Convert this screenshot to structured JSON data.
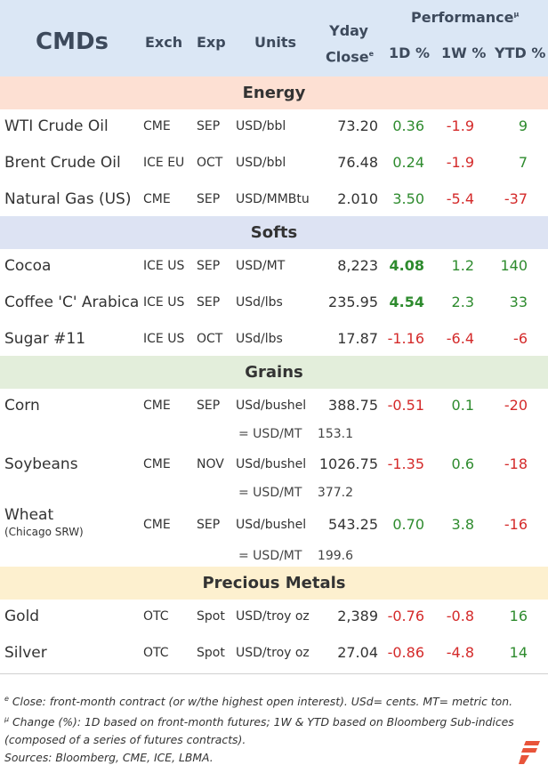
{
  "header": {
    "cmds": "CMDs",
    "exch": "Exch",
    "exp": "Exp",
    "units": "Units",
    "yday_line1": "Yday",
    "yday_line2": "Close",
    "yday_mark": "e",
    "performance": "Performance",
    "performance_mark": "µ",
    "d1": "1D %",
    "w1": "1W %",
    "ytd": "YTD %"
  },
  "colors": {
    "header_bg": "#dbe7f5",
    "energy_bg": "#fde0d3",
    "softs_bg": "#dde3f3",
    "grains_bg": "#e3eedb",
    "metals_bg": "#fdf0cf",
    "positive": "#2e8b2e",
    "negative": "#d42a2a",
    "logo": "#e8543a"
  },
  "sections": {
    "energy": "Energy",
    "softs": "Softs",
    "grains": "Grains",
    "metals": "Precious Metals"
  },
  "rows": {
    "wti": {
      "name": "WTI Crude Oil",
      "exch": "CME",
      "exp": "SEP",
      "units": "USD/bbl",
      "yday": "73.20",
      "d1": "0.36",
      "w1": "-1.9",
      "ytd": "9"
    },
    "brent": {
      "name": "Brent Crude Oil",
      "exch": "ICE EU",
      "exp": "OCT",
      "units": "USD/bbl",
      "yday": "76.48",
      "d1": "0.24",
      "w1": "-1.9",
      "ytd": "7"
    },
    "natgas": {
      "name": "Natural Gas (US)",
      "exch": "CME",
      "exp": "SEP",
      "units": "USD/MMBtu",
      "yday": "2.010",
      "d1": "3.50",
      "w1": "-5.4",
      "ytd": "-37"
    },
    "cocoa": {
      "name": "Cocoa",
      "exch": "ICE US",
      "exp": "SEP",
      "units": "USD/MT",
      "yday": "8,223",
      "d1": "4.08",
      "w1": "1.2",
      "ytd": "140"
    },
    "coffee": {
      "name": "Coffee 'C' Arabica",
      "exch": "ICE US",
      "exp": "SEP",
      "units": "USd/lbs",
      "yday": "235.95",
      "d1": "4.54",
      "w1": "2.3",
      "ytd": "33"
    },
    "sugar": {
      "name": "Sugar #11",
      "exch": "ICE US",
      "exp": "OCT",
      "units": "USd/lbs",
      "yday": "17.87",
      "d1": "-1.16",
      "w1": "-6.4",
      "ytd": "-6"
    },
    "corn": {
      "name": "Corn",
      "exch": "CME",
      "exp": "SEP",
      "units": "USd/bushel",
      "yday": "388.75",
      "d1": "-0.51",
      "w1": "0.1",
      "ytd": "-20",
      "conv": "= USD/MT",
      "conv_val": "153.1"
    },
    "soy": {
      "name": "Soybeans",
      "exch": "CME",
      "exp": "NOV",
      "units": "USd/bushel",
      "yday": "1026.75",
      "d1": "-1.35",
      "w1": "0.6",
      "ytd": "-18",
      "conv": "= USD/MT",
      "conv_val": "377.2"
    },
    "wheat": {
      "name": "Wheat",
      "name_sub": "(Chicago SRW)",
      "exch": "CME",
      "exp": "SEP",
      "units": "USd/bushel",
      "yday": "543.25",
      "d1": "0.70",
      "w1": "3.8",
      "ytd": "-16",
      "conv": "= USD/MT",
      "conv_val": "199.6"
    },
    "gold": {
      "name": "Gold",
      "exch": "OTC",
      "exp": "Spot",
      "units": "USD/troy oz",
      "yday": "2,389",
      "d1": "-0.76",
      "w1": "-0.8",
      "ytd": "16"
    },
    "silver": {
      "name": "Silver",
      "exch": "OTC",
      "exp": "Spot",
      "units": "USD/troy oz",
      "yday": "27.04",
      "d1": "-0.86",
      "w1": "-4.8",
      "ytd": "14"
    }
  },
  "notes": {
    "line1_mark": "e",
    "line1": " Close: front-month contract (or w/the highest open interest). USd= cents. MT= metric ton.",
    "line2_mark": "µ",
    "line2": " Change (%): 1D based on front-month futures; 1W & YTD based on Bloomberg Sub-indices (composed of a series of futures contracts).",
    "line3": "Sources: Bloomberg, CME, ICE, LBMA."
  }
}
